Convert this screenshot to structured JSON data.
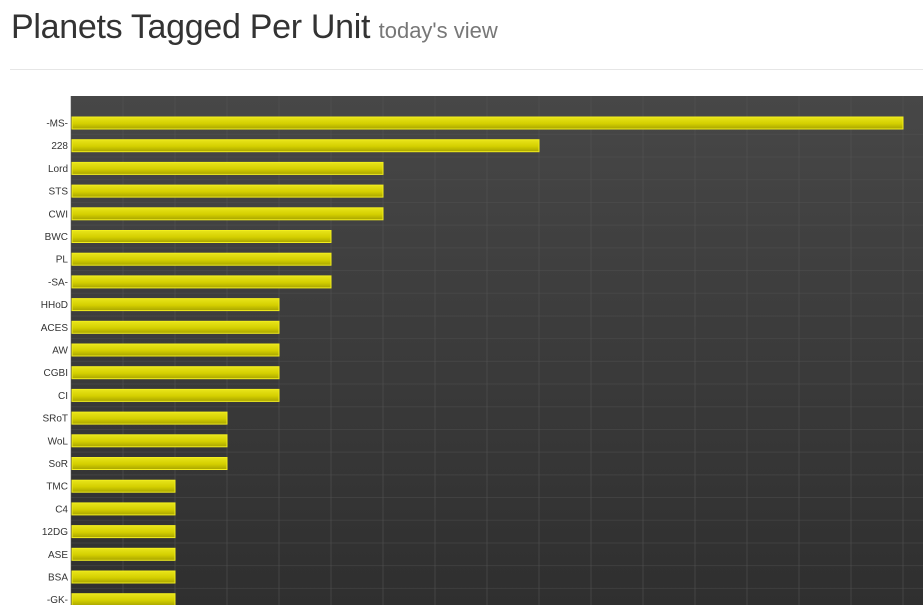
{
  "header": {
    "title": "Planets Tagged Per Unit",
    "subtitle": "today's view"
  },
  "colors": {
    "plot_bg_top": "#474747",
    "plot_bg_bottom": "#2f2f2f",
    "bar_fill": "#d4cf00",
    "bar_stroke": "#f2ee1e",
    "grid": "#555555"
  },
  "chart_data": {
    "type": "bar",
    "orientation": "horizontal",
    "title": "",
    "xlabel": "",
    "ylabel": "",
    "grid": true,
    "xlim": [
      0,
      16
    ],
    "categories": [
      "-MS-",
      "228",
      "Lord",
      "STS",
      "CWI",
      "BWC",
      "PL",
      "-SA-",
      "HHoD",
      "ACES",
      "AW",
      "CGBI",
      "CI",
      "SRoT",
      "WoL",
      "SoR",
      "TMC",
      "C4",
      "12DG",
      "ASE",
      "BSA",
      "-GK-"
    ],
    "values": [
      16,
      9,
      6,
      6,
      6,
      5,
      5,
      5,
      4,
      4,
      4,
      4,
      4,
      3,
      3,
      3,
      2,
      2,
      2,
      2,
      2,
      2
    ]
  }
}
